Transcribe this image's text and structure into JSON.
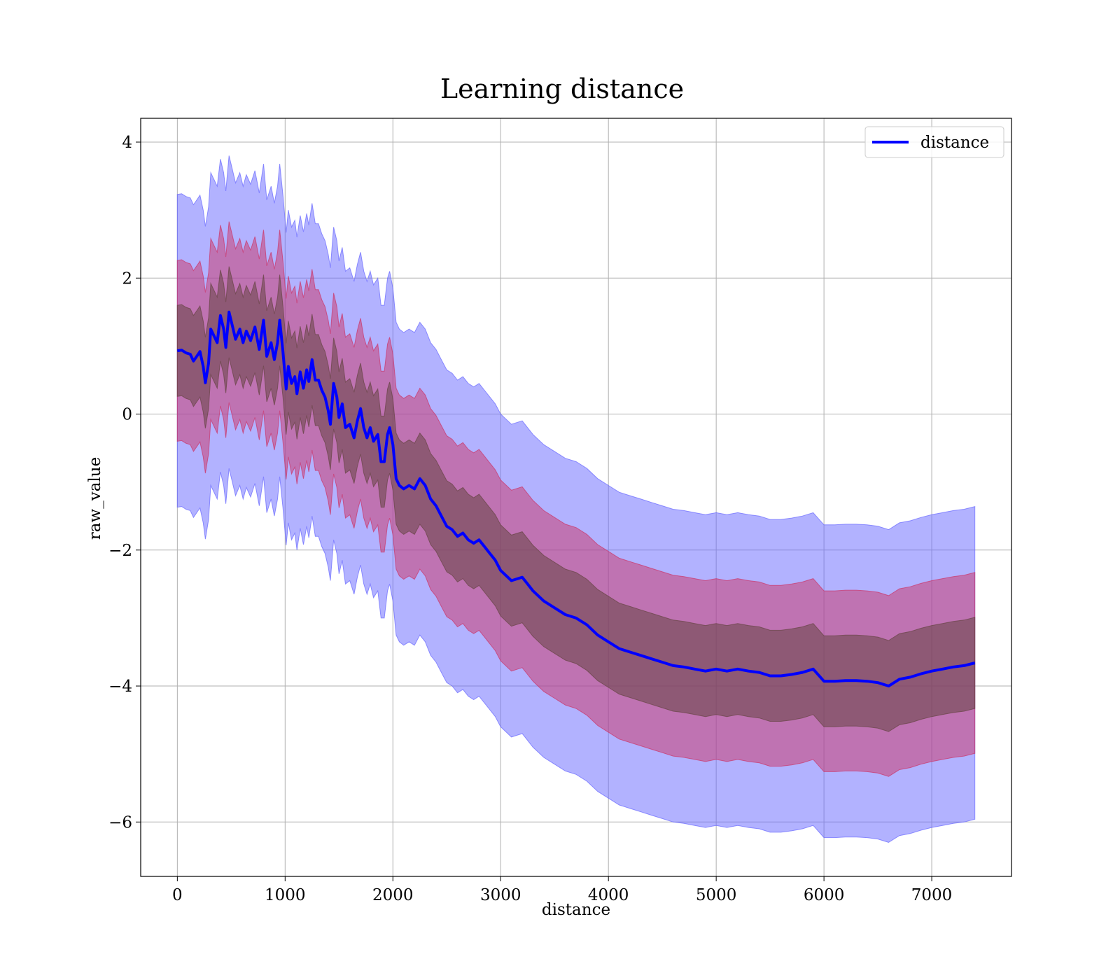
{
  "chart_data": {
    "type": "line",
    "title": "Learning distance",
    "xlabel": "distance",
    "ylabel": "raw_value",
    "xlim": [
      -340,
      7740
    ],
    "ylim": [
      -6.8,
      4.35
    ],
    "x_ticks": [
      0,
      1000,
      2000,
      3000,
      4000,
      5000,
      6000,
      7000
    ],
    "y_ticks": [
      4,
      2,
      0,
      -2,
      -4,
      -6
    ],
    "y_tick_labels": [
      "4",
      "2",
      "0",
      "−2",
      "−4",
      "−6"
    ],
    "grid": true,
    "legend_position": "top-right",
    "colors": {
      "mean_line": "#0000ff",
      "band_outer": "#6666ff",
      "band_middle": "#cc3366",
      "band_inner": "#664444"
    },
    "series": [
      {
        "name": "distance",
        "band_half_widths": [
          0.67,
          1.33,
          2.3
        ],
        "points": [
          [
            0,
            0.93
          ],
          [
            40,
            0.94
          ],
          [
            80,
            0.9
          ],
          [
            120,
            0.88
          ],
          [
            150,
            0.78
          ],
          [
            180,
            0.85
          ],
          [
            210,
            0.92
          ],
          [
            240,
            0.7
          ],
          [
            260,
            0.46
          ],
          [
            290,
            0.75
          ],
          [
            310,
            1.25
          ],
          [
            340,
            1.15
          ],
          [
            370,
            1.05
          ],
          [
            400,
            1.45
          ],
          [
            430,
            1.25
          ],
          [
            450,
            0.98
          ],
          [
            480,
            1.5
          ],
          [
            510,
            1.3
          ],
          [
            540,
            1.1
          ],
          [
            580,
            1.25
          ],
          [
            610,
            1.05
          ],
          [
            640,
            1.22
          ],
          [
            680,
            1.08
          ],
          [
            720,
            1.28
          ],
          [
            760,
            0.95
          ],
          [
            800,
            1.38
          ],
          [
            830,
            0.85
          ],
          [
            870,
            1.05
          ],
          [
            900,
            0.8
          ],
          [
            930,
            1.05
          ],
          [
            950,
            1.38
          ],
          [
            980,
            0.92
          ],
          [
            1010,
            0.37
          ],
          [
            1030,
            0.7
          ],
          [
            1060,
            0.45
          ],
          [
            1090,
            0.55
          ],
          [
            1110,
            0.3
          ],
          [
            1140,
            0.62
          ],
          [
            1170,
            0.38
          ],
          [
            1200,
            0.65
          ],
          [
            1220,
            0.48
          ],
          [
            1250,
            0.8
          ],
          [
            1280,
            0.5
          ],
          [
            1310,
            0.5
          ],
          [
            1340,
            0.35
          ],
          [
            1370,
            0.25
          ],
          [
            1400,
            0.05
          ],
          [
            1420,
            -0.15
          ],
          [
            1450,
            0.45
          ],
          [
            1480,
            0.25
          ],
          [
            1500,
            -0.05
          ],
          [
            1530,
            0.15
          ],
          [
            1560,
            -0.2
          ],
          [
            1600,
            -0.15
          ],
          [
            1640,
            -0.35
          ],
          [
            1670,
            -0.1
          ],
          [
            1700,
            0.08
          ],
          [
            1730,
            -0.2
          ],
          [
            1760,
            -0.35
          ],
          [
            1790,
            -0.2
          ],
          [
            1820,
            -0.4
          ],
          [
            1860,
            -0.3
          ],
          [
            1890,
            -0.7
          ],
          [
            1920,
            -0.7
          ],
          [
            1950,
            -0.3
          ],
          [
            1970,
            -0.2
          ],
          [
            2000,
            -0.45
          ],
          [
            2030,
            -0.95
          ],
          [
            2060,
            -1.05
          ],
          [
            2100,
            -1.1
          ],
          [
            2150,
            -1.05
          ],
          [
            2200,
            -1.1
          ],
          [
            2250,
            -0.95
          ],
          [
            2300,
            -1.05
          ],
          [
            2350,
            -1.25
          ],
          [
            2400,
            -1.35
          ],
          [
            2450,
            -1.5
          ],
          [
            2500,
            -1.65
          ],
          [
            2550,
            -1.7
          ],
          [
            2600,
            -1.8
          ],
          [
            2650,
            -1.75
          ],
          [
            2700,
            -1.85
          ],
          [
            2750,
            -1.9
          ],
          [
            2800,
            -1.85
          ],
          [
            2850,
            -1.95
          ],
          [
            2900,
            -2.05
          ],
          [
            2950,
            -2.15
          ],
          [
            3000,
            -2.3
          ],
          [
            3100,
            -2.45
          ],
          [
            3200,
            -2.4
          ],
          [
            3250,
            -2.5
          ],
          [
            3300,
            -2.6
          ],
          [
            3400,
            -2.75
          ],
          [
            3500,
            -2.85
          ],
          [
            3600,
            -2.95
          ],
          [
            3700,
            -3.0
          ],
          [
            3800,
            -3.1
          ],
          [
            3900,
            -3.25
          ],
          [
            4000,
            -3.35
          ],
          [
            4100,
            -3.45
          ],
          [
            4200,
            -3.5
          ],
          [
            4300,
            -3.55
          ],
          [
            4400,
            -3.6
          ],
          [
            4500,
            -3.65
          ],
          [
            4600,
            -3.7
          ],
          [
            4700,
            -3.72
          ],
          [
            4800,
            -3.75
          ],
          [
            4900,
            -3.78
          ],
          [
            5000,
            -3.75
          ],
          [
            5100,
            -3.78
          ],
          [
            5200,
            -3.75
          ],
          [
            5300,
            -3.78
          ],
          [
            5400,
            -3.8
          ],
          [
            5500,
            -3.85
          ],
          [
            5600,
            -3.85
          ],
          [
            5700,
            -3.83
          ],
          [
            5800,
            -3.8
          ],
          [
            5900,
            -3.75
          ],
          [
            6000,
            -3.93
          ],
          [
            6100,
            -3.93
          ],
          [
            6200,
            -3.92
          ],
          [
            6300,
            -3.92
          ],
          [
            6400,
            -3.93
          ],
          [
            6500,
            -3.95
          ],
          [
            6600,
            -4.0
          ],
          [
            6700,
            -3.9
          ],
          [
            6800,
            -3.87
          ],
          [
            6900,
            -3.82
          ],
          [
            7000,
            -3.78
          ],
          [
            7100,
            -3.75
          ],
          [
            7200,
            -3.72
          ],
          [
            7300,
            -3.7
          ],
          [
            7400,
            -3.66
          ]
        ]
      }
    ]
  }
}
